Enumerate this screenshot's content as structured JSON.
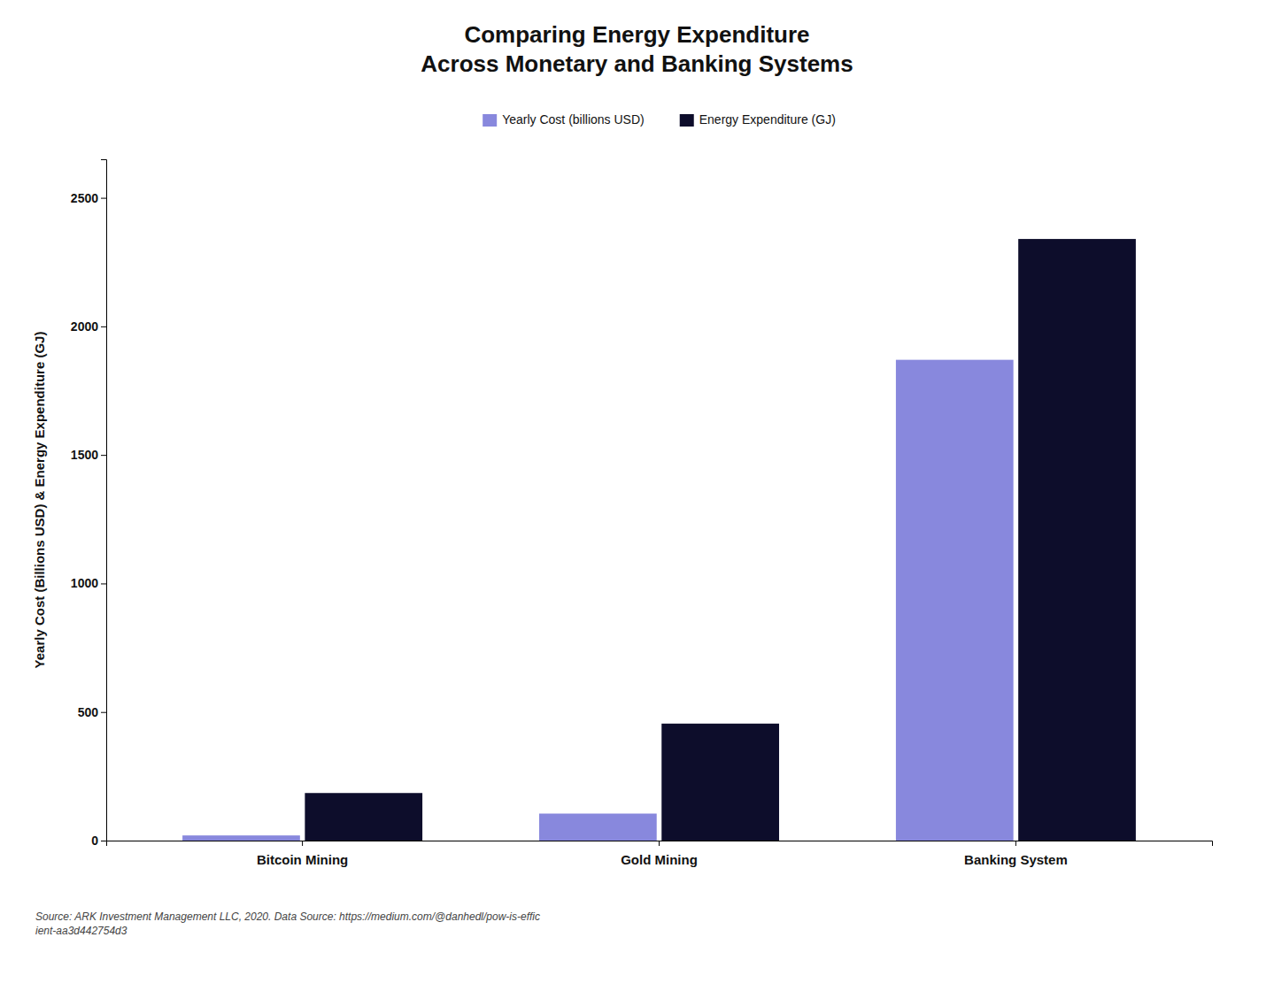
{
  "chart_data": {
    "type": "bar",
    "title": "Comparing Energy Expenditure\nAcross Monetary and Banking Systems",
    "categories": [
      "Bitcoin Mining",
      "Gold Mining",
      "Banking System"
    ],
    "series": [
      {
        "name": "Yearly Cost (billions USD)",
        "color": "#8888dd",
        "values": [
          20,
          105,
          1870
        ]
      },
      {
        "name": "Energy Expenditure (GJ)",
        "color": "#0d0d2b",
        "values": [
          185,
          455,
          2340
        ]
      }
    ],
    "y_label": "Yearly Cost (Billions USD) & Energy Expenditure (GJ)",
    "ylim": [
      0,
      2650
    ],
    "yticks": [
      0,
      500,
      1000,
      1500,
      2000,
      2500
    ],
    "grid": false,
    "legend": "top",
    "source": "Source: ARK Investment Management LLC, 2020. Data Source: https://medium.com/@danhedl/pow-is-effic\nient-aa3d442754d3"
  }
}
